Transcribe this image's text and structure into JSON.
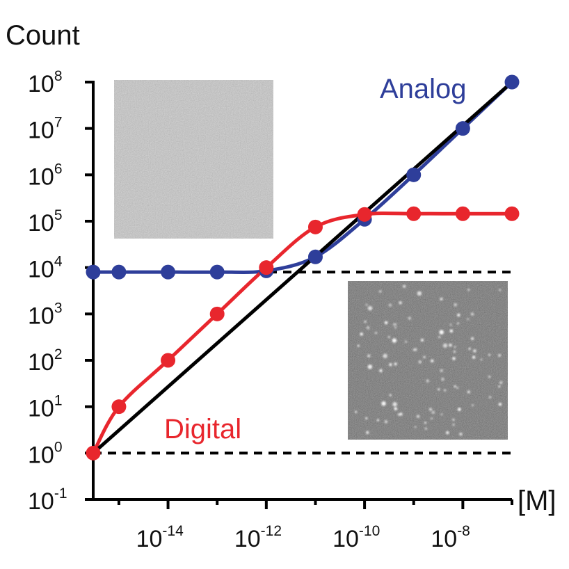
{
  "chart_data": {
    "type": "line",
    "title": "",
    "ylabel": "Count",
    "xlabel": "[M]",
    "x_scale": "log",
    "y_scale": "log",
    "xlim": [
      3e-16,
      1e-07
    ],
    "ylim": [
      0.1,
      100000000
    ],
    "x_ticks": [
      {
        "base": "10",
        "exp": "-14",
        "value": 1e-14
      },
      {
        "base": "10",
        "exp": "-12",
        "value": 1e-12
      },
      {
        "base": "10",
        "exp": "-10",
        "value": 1e-10
      },
      {
        "base": "10",
        "exp": "-8",
        "value": 1e-08
      }
    ],
    "x_minor_ticks": [
      1e-15,
      1e-13,
      1e-11,
      1e-09,
      1e-07
    ],
    "y_ticks": [
      {
        "base": "10",
        "exp": "8",
        "value": 100000000
      },
      {
        "base": "10",
        "exp": "7",
        "value": 10000000
      },
      {
        "base": "10",
        "exp": "6",
        "value": 1000000
      },
      {
        "base": "10",
        "exp": "5",
        "value": 100000
      },
      {
        "base": "10",
        "exp": "4",
        "value": 10000
      },
      {
        "base": "10",
        "exp": "3",
        "value": 1000
      },
      {
        "base": "10",
        "exp": "2",
        "value": 100
      },
      {
        "base": "10",
        "exp": "1",
        "value": 10
      },
      {
        "base": "10",
        "exp": "0",
        "value": 1
      },
      {
        "base": "10",
        "exp": "-1",
        "value": 0.1
      }
    ],
    "series": [
      {
        "name": "Analog",
        "color": "#2e3e9a",
        "x": [
          3e-16,
          1e-15,
          1e-14,
          1e-13,
          1e-12,
          1e-11,
          1e-10,
          1e-09,
          1e-08,
          1e-07
        ],
        "y": [
          8000,
          8000,
          8000,
          8000,
          8500,
          17000,
          110000,
          1000000,
          10000000,
          100000000
        ]
      },
      {
        "name": "Digital",
        "color": "#e8262d",
        "x": [
          3e-16,
          1e-15,
          1e-14,
          1e-13,
          1e-12,
          1e-11,
          1e-10,
          1e-09,
          1e-08,
          1e-07
        ],
        "y": [
          1,
          10,
          100,
          1000,
          10000,
          75000,
          140000,
          145000,
          145000,
          145000
        ]
      }
    ],
    "reference_line": {
      "color": "#000000",
      "x": [
        3e-16,
        1e-07
      ],
      "y": [
        1,
        100000000
      ]
    },
    "dashed_lines": [
      {
        "y": 8000,
        "color": "#000000"
      },
      {
        "y": 1,
        "color": "#000000"
      }
    ],
    "insets": [
      {
        "name": "analog-image",
        "style": "uniform gray noise",
        "color": "#8f8f8f"
      },
      {
        "name": "digital-image",
        "style": "dark with bright spots",
        "color": "#3d3d3d"
      }
    ]
  }
}
